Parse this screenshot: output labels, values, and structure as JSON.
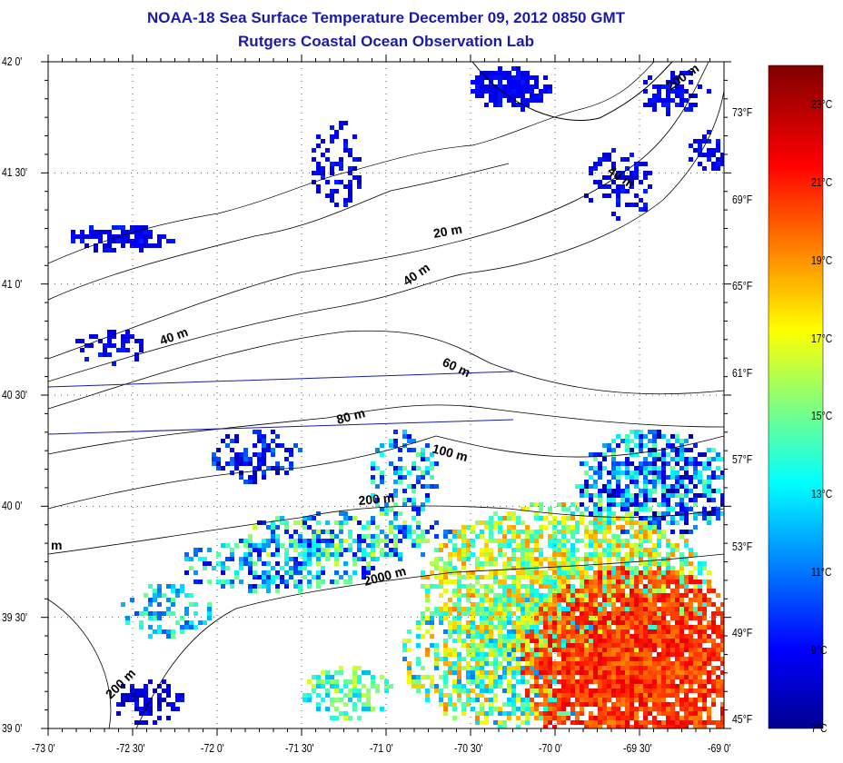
{
  "title": "NOAA-18 Sea Surface Temperature December 09, 2012 0850 GMT",
  "subtitle": "Rutgers Coastal Ocean Observation Lab",
  "axes": {
    "lat_labels": [
      "42 0'",
      "41 30'",
      "41 0'",
      "40 30'",
      "40 0'",
      "39 30'",
      "39 0'"
    ],
    "lat_values": [
      42,
      41.5,
      41,
      40.5,
      40,
      39.5,
      39
    ],
    "lon_labels": [
      "-73 0'",
      "-72 30'",
      "-72 0'",
      "-71 30'",
      "-71 0'",
      "-70 30'",
      "-70 0'",
      "-69 30'",
      "-69 0'"
    ],
    "lon_values": [
      -73,
      -72.5,
      -72,
      -71.5,
      -71,
      -70.5,
      -70,
      -69.5,
      -69
    ],
    "lat_range": [
      39,
      42
    ],
    "lon_range": [
      -73,
      -69
    ]
  },
  "colorbar": {
    "range_c": [
      7,
      24
    ],
    "celsius_labels": [
      "23°C",
      "21°C",
      "19°C",
      "17°C",
      "15°C",
      "13°C",
      "11°C",
      "9°C",
      "7°C"
    ],
    "celsius_values": [
      23,
      21,
      19,
      17,
      15,
      13,
      11,
      9,
      7
    ],
    "fahrenheit_labels": [
      "73°F",
      "69°F",
      "65°F",
      "61°F",
      "57°F",
      "53°F",
      "49°F",
      "45°F"
    ],
    "fahrenheit_values": [
      73,
      69,
      65,
      61,
      57,
      53,
      49,
      45
    ]
  },
  "contour_labels": [
    "20 m",
    "40 m",
    "40 m",
    "200 m",
    "40 m",
    "60 m",
    "80 m",
    "100 m",
    "200 m",
    "2000 m",
    "200 m",
    "m"
  ]
}
